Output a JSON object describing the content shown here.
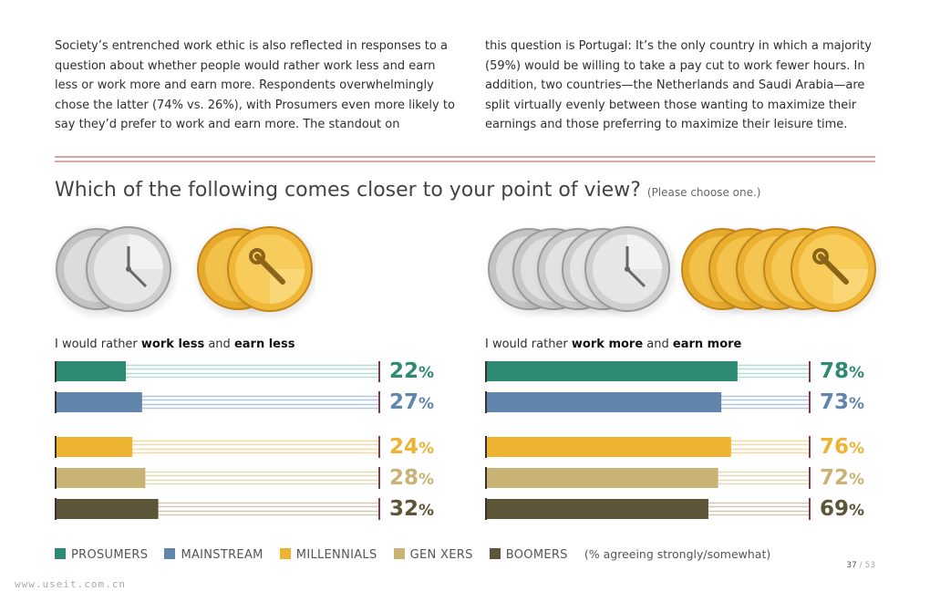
{
  "intro": {
    "left": "Society’s entrenched work ethic is also reflected in responses to a question about whether people would rather work less and earn less or work more and earn more. Respondents overwhelmingly chose the latter (74% vs. 26%), with Prosumers even more likely to say they’d prefer to work and earn more. The standout on",
    "right": "this question is Portugal: It’s the only country in which a majority (59%) would be willing to take a pay cut to work fewer hours. In addition, two countries—the Netherlands and Saudi Arabia—are split virtually evenly between those wanting to maximize their earnings and those preferring to maximize their leisure time."
  },
  "question": {
    "main": "Which of the following comes closer to your point of view?",
    "sub": "(Please choose one.)"
  },
  "labels": {
    "left": {
      "pre": "I would rather ",
      "b1": "work less",
      "mid": " and ",
      "b2": "earn less"
    },
    "right": {
      "pre": "I would rather ",
      "b1": "work more",
      "mid": " and ",
      "b2": "earn more"
    }
  },
  "colors": {
    "prosumers": "#2e8a72",
    "mainstream": "#6285ad",
    "millennials": "#edb331",
    "genxers": "#c8b375",
    "boomers": "#5d5538",
    "rule": "#d9a5a5"
  },
  "legend": {
    "items": [
      {
        "label": "PROSUMERS",
        "color": "#2e8a72"
      },
      {
        "label": "MAINSTREAM",
        "color": "#6285ad"
      },
      {
        "label": "MILLENNIALS",
        "color": "#edb331"
      },
      {
        "label": "GEN XERS",
        "color": "#c8b375"
      },
      {
        "label": "BOOMERS",
        "color": "#5d5538"
      }
    ],
    "note": "(% agreeing strongly/somewhat)"
  },
  "page": {
    "current": "37",
    "total": "/ 53"
  },
  "watermark": "www.useit.com.cn",
  "chart_data": [
    {
      "type": "bar",
      "title": "I would rather work less and earn less",
      "categories": [
        "PROSUMERS",
        "MAINSTREAM",
        "MILLENNIALS",
        "GEN XERS",
        "BOOMERS"
      ],
      "values": [
        22,
        27,
        24,
        28,
        32
      ],
      "labels": [
        "22",
        "27",
        "24",
        "28",
        "32"
      ],
      "unit": "%",
      "xlim": [
        0,
        100
      ],
      "colors": [
        "#2e8a72",
        "#6285ad",
        "#edb331",
        "#c8b375",
        "#5d5538"
      ]
    },
    {
      "type": "bar",
      "title": "I would rather work more and earn more",
      "categories": [
        "PROSUMERS",
        "MAINSTREAM",
        "MILLENNIALS",
        "GEN XERS",
        "BOOMERS"
      ],
      "values": [
        78,
        73,
        76,
        72,
        69
      ],
      "labels": [
        "78",
        "73",
        "76",
        "72",
        "69"
      ],
      "unit": "%",
      "xlim": [
        0,
        100
      ],
      "colors": [
        "#2e8a72",
        "#6285ad",
        "#edb331",
        "#c8b375",
        "#5d5538"
      ]
    }
  ]
}
